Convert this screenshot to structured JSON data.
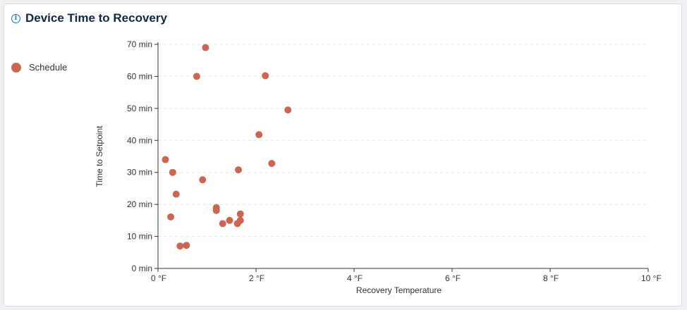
{
  "card": {
    "title": "Device Time to Recovery",
    "title_icon": "info-icon"
  },
  "chart_data": {
    "type": "scatter",
    "title": "Device Time to Recovery",
    "xlabel": "Recovery Temperature",
    "ylabel": "Time to Setpoint",
    "xlim": [
      0,
      10
    ],
    "ylim": [
      0,
      70
    ],
    "x_ticks": [
      0,
      2,
      4,
      6,
      8,
      10
    ],
    "y_ticks": [
      0,
      10,
      20,
      30,
      40,
      50,
      60,
      70
    ],
    "x_tick_labels": [
      "0 °F",
      "2 °F",
      "4 °F",
      "6 °F",
      "8 °F",
      "10 °F"
    ],
    "y_tick_labels": [
      "0 min",
      "10 min",
      "20 min",
      "30 min",
      "40 min",
      "50 min",
      "60 min",
      "70 min"
    ],
    "grid": {
      "horizontal": true,
      "style": "dashed"
    },
    "legend_position": "left",
    "series": [
      {
        "name": "Schedule",
        "color": "#cd6553",
        "points": [
          [
            0.97,
            69
          ],
          [
            0.79,
            60
          ],
          [
            2.19,
            60.2
          ],
          [
            2.65,
            49.5
          ],
          [
            2.06,
            41.8
          ],
          [
            0.15,
            34
          ],
          [
            2.32,
            32.8
          ],
          [
            0.3,
            30
          ],
          [
            1.64,
            30.8
          ],
          [
            0.91,
            27.7
          ],
          [
            0.37,
            23.2
          ],
          [
            1.19,
            19
          ],
          [
            1.19,
            18.1
          ],
          [
            0.26,
            16.1
          ],
          [
            1.68,
            17
          ],
          [
            1.46,
            15
          ],
          [
            1.32,
            14
          ],
          [
            1.62,
            14
          ],
          [
            1.68,
            15
          ],
          [
            0.58,
            7.2
          ],
          [
            0.45,
            7
          ]
        ]
      }
    ]
  }
}
